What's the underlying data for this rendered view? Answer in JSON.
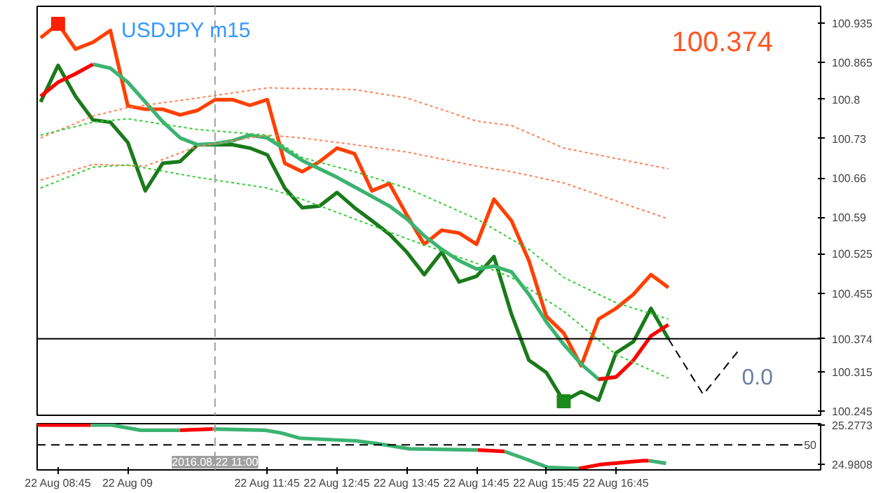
{
  "chart_data": [
    {
      "type": "line",
      "title": "USDJPY m15",
      "annotations": [
        "100.374",
        "0.0"
      ],
      "xlim": [
        "2016-08-22T08:27",
        "2016-08-22T19:41"
      ],
      "ylim": [
        100.238,
        100.965
      ],
      "yticks": [
        100.935,
        100.865,
        100.8,
        100.73,
        100.66,
        100.59,
        100.525,
        100.455,
        100.315,
        100.245
      ],
      "tick_labels": "y",
      "ref_lines": [
        {
          "axis": "x",
          "value": "2016-08-22T11:00",
          "color": "#a0a0a0",
          "line_style": "dashed"
        },
        {
          "axis": "y",
          "value": 100.374,
          "label": "100.374",
          "color": "#000000"
        }
      ],
      "series": [
        {
          "color": "#ff4000",
          "line_style": "solid",
          "x": [
            "2016-08-22T08:30",
            "2016-08-22T08:45",
            "2016-08-22T09:00",
            "2016-08-22T09:15",
            "2016-08-22T09:30",
            "2016-08-22T09:45",
            "2016-08-22T10:00",
            "2016-08-22T10:15",
            "2016-08-22T10:30",
            "2016-08-22T10:45",
            "2016-08-22T11:00",
            "2016-08-22T11:15",
            "2016-08-22T11:30",
            "2016-08-22T11:45",
            "2016-08-22T12:00",
            "2016-08-22T12:15",
            "2016-08-22T12:30",
            "2016-08-22T12:45",
            "2016-08-22T13:00",
            "2016-08-22T13:15",
            "2016-08-22T13:30",
            "2016-08-22T13:45",
            "2016-08-22T14:00",
            "2016-08-22T14:15",
            "2016-08-22T14:30",
            "2016-08-22T14:45",
            "2016-08-22T15:00",
            "2016-08-22T15:15",
            "2016-08-22T15:30",
            "2016-08-22T15:45",
            "2016-08-22T16:00",
            "2016-08-22T16:15",
            "2016-08-22T16:30",
            "2016-08-22T16:45",
            "2016-08-22T17:00",
            "2016-08-22T17:15",
            "2016-08-22T17:30"
          ],
          "values": [
            100.909,
            100.934,
            100.889,
            100.901,
            100.922,
            100.788,
            100.782,
            100.782,
            100.772,
            100.78,
            100.799,
            100.799,
            100.789,
            100.799,
            100.686,
            100.671,
            100.689,
            100.713,
            100.703,
            100.637,
            100.65,
            100.594,
            100.542,
            100.567,
            100.562,
            100.542,
            100.622,
            100.584,
            100.513,
            100.414,
            100.384,
            100.326,
            100.409,
            100.428,
            100.453,
            100.488,
            100.465
          ]
        },
        {
          "color": "#1a7a1a",
          "line_style": "solid",
          "x": [
            "2016-08-22T08:30",
            "2016-08-22T08:45",
            "2016-08-22T09:00",
            "2016-08-22T09:15",
            "2016-08-22T09:30",
            "2016-08-22T09:45",
            "2016-08-22T10:00",
            "2016-08-22T10:15",
            "2016-08-22T10:30",
            "2016-08-22T10:45",
            "2016-08-22T11:00",
            "2016-08-22T11:15",
            "2016-08-22T11:30",
            "2016-08-22T11:45",
            "2016-08-22T12:00",
            "2016-08-22T12:15",
            "2016-08-22T12:30",
            "2016-08-22T12:45",
            "2016-08-22T13:00",
            "2016-08-22T13:15",
            "2016-08-22T13:30",
            "2016-08-22T13:45",
            "2016-08-22T14:00",
            "2016-08-22T14:15",
            "2016-08-22T14:30",
            "2016-08-22T14:45",
            "2016-08-22T15:00",
            "2016-08-22T15:15",
            "2016-08-22T15:30",
            "2016-08-22T15:45",
            "2016-08-22T16:00",
            "2016-08-22T16:15",
            "2016-08-22T16:30",
            "2016-08-22T16:45",
            "2016-08-22T17:00",
            "2016-08-22T17:15",
            "2016-08-22T17:30"
          ],
          "values": [
            100.795,
            100.86,
            100.805,
            100.763,
            100.759,
            100.723,
            100.637,
            100.686,
            100.689,
            100.719,
            100.719,
            100.719,
            100.713,
            100.701,
            100.642,
            100.607,
            100.61,
            100.634,
            100.607,
            100.584,
            100.56,
            100.528,
            100.488,
            100.528,
            100.475,
            100.485,
            100.52,
            100.418,
            100.336,
            100.314,
            100.263,
            100.28,
            100.265,
            100.349,
            100.369,
            100.428,
            100.374
          ]
        },
        {
          "color": "#3cb371",
          "line_style": "solid",
          "x": [
            "2016-08-22T09:15",
            "2016-08-22T09:30",
            "2016-08-22T09:45",
            "2016-08-22T10:00",
            "2016-08-22T10:15",
            "2016-08-22T10:30",
            "2016-08-22T10:45",
            "2016-08-22T11:00",
            "2016-08-22T11:15",
            "2016-08-22T11:30",
            "2016-08-22T11:45",
            "2016-08-22T12:00",
            "2016-08-22T12:15",
            "2016-08-22T12:30",
            "2016-08-22T12:45",
            "2016-08-22T13:00",
            "2016-08-22T13:15",
            "2016-08-22T13:30",
            "2016-08-22T13:45",
            "2016-08-22T14:00",
            "2016-08-22T14:15",
            "2016-08-22T14:30",
            "2016-08-22T14:45",
            "2016-08-22T15:00",
            "2016-08-22T15:15",
            "2016-08-22T15:30",
            "2016-08-22T15:45",
            "2016-08-22T16:00",
            "2016-08-22T16:15",
            "2016-08-22T16:30",
            "2016-08-22T16:45"
          ],
          "values": [
            100.862,
            100.855,
            100.83,
            100.795,
            100.76,
            100.731,
            100.719,
            100.721,
            100.726,
            100.736,
            100.731,
            100.711,
            100.691,
            100.676,
            100.661,
            100.644,
            100.627,
            100.61,
            100.587,
            100.557,
            100.533,
            100.513,
            100.498,
            100.503,
            100.493,
            100.453,
            100.404,
            100.364,
            100.329,
            100.302,
            100.306
          ]
        },
        {
          "color": "#ff0000",
          "line_style": "solid",
          "x": [
            "2016-08-22T08:30",
            "2016-08-22T08:45",
            "2016-08-22T09:00",
            "2016-08-22T09:15",
            "2016-08-22T09:30",
            "2016-08-22T16:30",
            "2016-08-22T16:45",
            "2016-08-22T17:00",
            "2016-08-22T17:15",
            "2016-08-22T17:30"
          ],
          "values": [
            100.805,
            100.83,
            100.845,
            100.862,
            null,
            100.302,
            100.306,
            100.336,
            100.379,
            100.399
          ]
        },
        {
          "color": "#ff7f50",
          "line_style": "dotted",
          "x": [
            "2016-08-22T08:30",
            "2016-08-22T09:15",
            "2016-08-22T09:45",
            "2016-08-22T10:45",
            "2016-08-22T11:45",
            "2016-08-22T13:00",
            "2016-08-22T13:45",
            "2016-08-22T14:45",
            "2016-08-22T15:15",
            "2016-08-22T16:00",
            "2016-08-22T17:30"
          ],
          "values": [
            100.731,
            100.77,
            100.785,
            100.802,
            100.82,
            100.817,
            100.802,
            100.761,
            100.753,
            100.713,
            100.676
          ]
        },
        {
          "color": "#ff7f50",
          "line_style": "dotted",
          "x": [
            "2016-08-22T08:30",
            "2016-08-22T09:15",
            "2016-08-22T10:00",
            "2016-08-22T10:45",
            "2016-08-22T11:45",
            "2016-08-22T12:15",
            "2016-08-22T13:00",
            "2016-08-22T13:45",
            "2016-08-22T14:45",
            "2016-08-22T15:15",
            "2016-08-22T16:00",
            "2016-08-22T17:30"
          ],
          "values": [
            100.656,
            100.684,
            100.681,
            100.716,
            100.736,
            100.731,
            100.719,
            100.706,
            100.681,
            100.671,
            100.651,
            100.587
          ]
        },
        {
          "color": "#32cd32",
          "line_style": "dotted",
          "x": [
            "2016-08-22T08:30",
            "2016-08-22T09:15",
            "2016-08-22T09:45",
            "2016-08-22T10:45",
            "2016-08-22T11:45",
            "2016-08-22T12:15",
            "2016-08-22T13:00",
            "2016-08-22T13:45",
            "2016-08-22T14:45",
            "2016-08-22T15:30",
            "2016-08-22T16:00",
            "2016-08-22T16:45",
            "2016-08-22T17:30"
          ],
          "values": [
            100.736,
            100.759,
            100.765,
            100.746,
            100.736,
            100.696,
            100.671,
            100.642,
            100.587,
            100.533,
            100.483,
            100.438,
            100.409
          ]
        },
        {
          "color": "#32cd32",
          "line_style": "dotted",
          "x": [
            "2016-08-22T08:30",
            "2016-08-22T09:15",
            "2016-08-22T09:45",
            "2016-08-22T10:45",
            "2016-08-22T11:45",
            "2016-08-22T12:15",
            "2016-08-22T13:00",
            "2016-08-22T13:45",
            "2016-08-22T14:45",
            "2016-08-22T15:15",
            "2016-08-22T16:00",
            "2016-08-22T16:45",
            "2016-08-22T17:30"
          ],
          "values": [
            100.642,
            100.679,
            100.683,
            100.661,
            100.642,
            100.622,
            100.587,
            100.552,
            100.508,
            100.483,
            100.423,
            100.346,
            100.304
          ]
        },
        {
          "color": "#000000",
          "line_style": "dashed",
          "x": [
            "2016-08-22T17:30",
            "2016-08-22T18:00",
            "2016-08-22T18:30"
          ],
          "values": [
            100.374,
            100.275,
            100.352
          ]
        },
        {
          "type": "scatter",
          "marker": "square",
          "color": "#ff2000",
          "x": [
            "2016-08-22T08:45"
          ],
          "values": [
            100.934
          ]
        },
        {
          "type": "scatter",
          "marker": "square",
          "color": "#1a8a1a",
          "x": [
            "2016-08-22T16:00"
          ],
          "values": [
            100.263
          ]
        }
      ]
    },
    {
      "type": "line",
      "annotations": [
        "50"
      ],
      "xlim": [
        "2016-08-22T08:27",
        "2016-08-22T19:41"
      ],
      "ylim": [
        24.94,
        25.29
      ],
      "yticks": [
        25.2773,
        24.9808
      ],
      "xticks": [
        {
          "value": "2016-08-22T08:45",
          "label": "22 Aug 08:45"
        },
        {
          "value": "2016-08-22T09:45",
          "label": "22 Aug 09"
        },
        {
          "value": "2016-08-22T11:45",
          "label": "22 Aug 11:45"
        },
        {
          "value": "2016-08-22T12:45",
          "label": "22 Aug 12:45"
        },
        {
          "value": "2016-08-22T13:45",
          "label": "22 Aug 13:45"
        },
        {
          "value": "2016-08-22T14:45",
          "label": "22 Aug 14:45"
        },
        {
          "value": "2016-08-22T15:45",
          "label": "22 Aug 15:45"
        },
        {
          "value": "2016-08-22T16:45",
          "label": "22 Aug 16:45"
        }
      ],
      "ref_lines": [
        {
          "axis": "x",
          "value": "2016-08-22T11:00",
          "label": "2016.08.22 11:00",
          "color": "#a0a0a0",
          "line_style": "dashed"
        },
        {
          "axis": "y",
          "value": 25.13,
          "color": "#000000",
          "line_style": "dashed"
        }
      ],
      "series": [
        {
          "color": "#3cb371",
          "line_style": "solid",
          "x": [
            "2016-08-22T09:13",
            "2016-08-22T09:31",
            "2016-08-22T09:56",
            "2016-08-22T10:30",
            "2016-08-22T10:42",
            "2016-08-22T10:58",
            "2016-08-22T11:43",
            "2016-08-22T11:57",
            "2016-08-22T12:13",
            "2016-08-22T13:01",
            "2016-08-22T13:19",
            "2016-08-22T13:47",
            "2016-08-22T14:46",
            "2016-08-22T14:54",
            "2016-08-22T15:09",
            "2016-08-22T15:28",
            "2016-08-22T15:46",
            "2016-08-22T16:13",
            "2016-08-22T16:30",
            "2016-08-22T17:13",
            "2016-08-22T17:28"
          ],
          "values": [
            25.28,
            25.28,
            25.24,
            25.24,
            null,
            25.25,
            25.24,
            25.22,
            25.18,
            25.16,
            25.14,
            25.1,
            25.09,
            null,
            25.08,
            25.02,
            24.96,
            24.95,
            null,
            25.01,
            24.99
          ]
        },
        {
          "color": "#ff0000",
          "line_style": "solid",
          "x": [
            "2016-08-22T08:27",
            "2016-08-22T09:13",
            "2016-08-22T09:24",
            "2016-08-22T10:30",
            "2016-08-22T10:58",
            "2016-08-22T11:18",
            "2016-08-22T14:46",
            "2016-08-22T15:09",
            "2016-08-22T15:30",
            "2016-08-22T16:13",
            "2016-08-22T16:31",
            "2016-08-22T17:08",
            "2016-08-22T17:13"
          ],
          "values": [
            25.28,
            25.28,
            null,
            25.24,
            25.25,
            null,
            25.09,
            25.08,
            null,
            24.95,
            24.98,
            25.01,
            25.01
          ]
        }
      ]
    }
  ]
}
